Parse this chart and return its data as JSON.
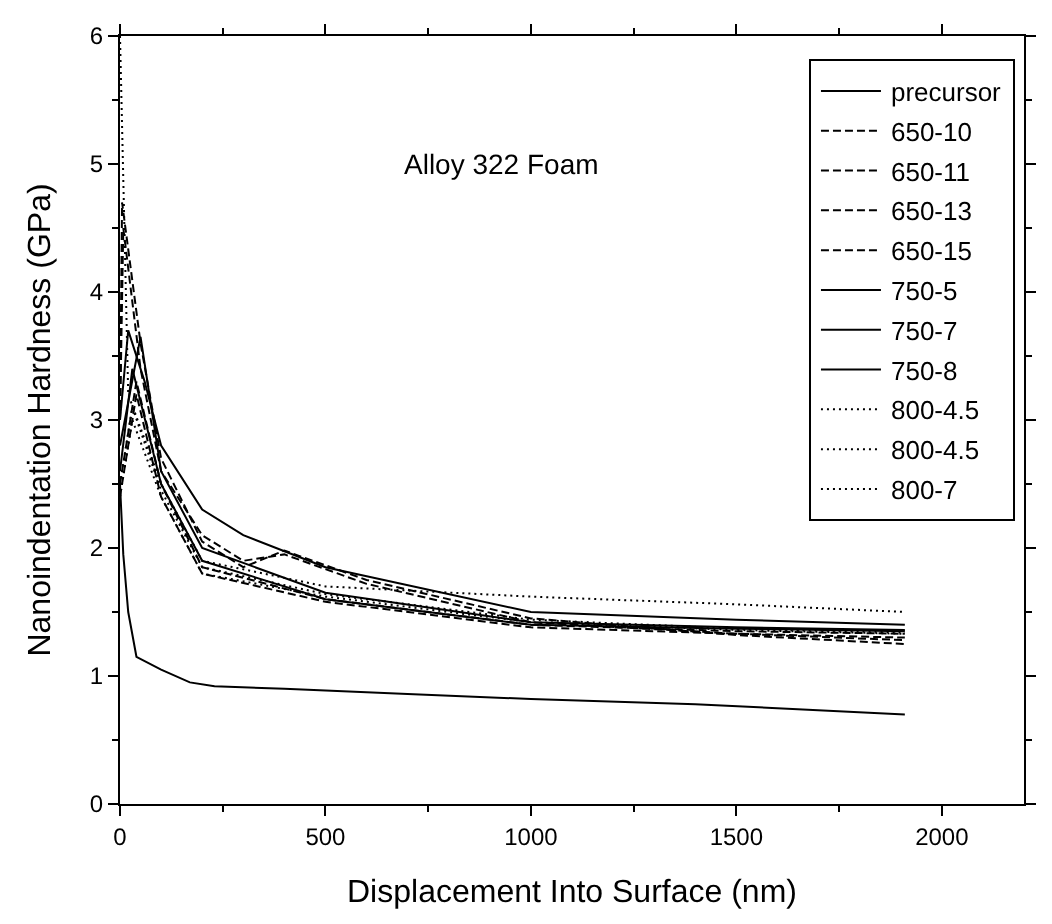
{
  "chart_data": {
    "type": "line",
    "xlabel": "Displacement Into Surface (nm)",
    "ylabel": "Nanoindentation Hardness (GPa)",
    "annotations": [
      "Alloy 322 Foam"
    ],
    "xlim": [
      0,
      2200
    ],
    "xticks": [
      0,
      500,
      1000,
      1500,
      2000
    ],
    "ylim": [
      0,
      6
    ],
    "yticks": [
      0,
      1,
      2,
      3,
      4,
      5,
      6
    ],
    "legend": "top right",
    "marker": "none",
    "series": [
      {
        "name": "precursor",
        "color": "#000000",
        "line_style": "solid",
        "x": [
          0,
          8,
          20,
          40,
          100,
          170,
          230,
          400,
          700,
          1000,
          1400,
          1910
        ],
        "values": [
          2.5,
          1.95,
          1.5,
          1.15,
          1.05,
          0.95,
          0.92,
          0.9,
          0.86,
          0.82,
          0.78,
          0.7
        ]
      },
      {
        "name": "650-10",
        "color": "#000000",
        "line_style": "dashed",
        "x": [
          0,
          5,
          50,
          100,
          200,
          300,
          400,
          600,
          1000,
          1500,
          1910
        ],
        "values": [
          3.0,
          4.7,
          3.6,
          2.7,
          2.05,
          1.85,
          1.98,
          1.75,
          1.45,
          1.32,
          1.25
        ]
      },
      {
        "name": "650-11",
        "color": "#000000",
        "line_style": "dashed",
        "x": [
          0,
          8,
          50,
          100,
          200,
          300,
          400,
          600,
          1000,
          1500,
          1910
        ],
        "values": [
          3.0,
          4.5,
          3.4,
          2.6,
          2.1,
          1.9,
          1.95,
          1.72,
          1.42,
          1.33,
          1.28
        ]
      },
      {
        "name": "650-13",
        "color": "#000000",
        "line_style": "dashed",
        "x": [
          0,
          40,
          100,
          200,
          500,
          1000,
          1500,
          1910
        ],
        "values": [
          2.5,
          3.3,
          2.5,
          1.85,
          1.6,
          1.4,
          1.35,
          1.33
        ]
      },
      {
        "name": "650-15",
        "color": "#000000",
        "line_style": "dashed",
        "x": [
          0,
          40,
          100,
          200,
          500,
          1000,
          1500,
          1910
        ],
        "values": [
          2.4,
          3.2,
          2.4,
          1.8,
          1.58,
          1.38,
          1.33,
          1.3
        ]
      },
      {
        "name": "750-5",
        "color": "#000000",
        "line_style": "solid",
        "x": [
          0,
          20,
          60,
          100,
          200,
          300,
          500,
          1000,
          1500,
          1910
        ],
        "values": [
          3.0,
          3.7,
          3.3,
          2.8,
          2.3,
          2.1,
          1.85,
          1.5,
          1.44,
          1.4
        ]
      },
      {
        "name": "750-7",
        "color": "#000000",
        "line_style": "solid",
        "x": [
          0,
          50,
          100,
          200,
          500,
          1000,
          1500,
          1910
        ],
        "values": [
          2.8,
          3.65,
          2.6,
          2.0,
          1.65,
          1.42,
          1.38,
          1.36
        ]
      },
      {
        "name": "750-8",
        "color": "#000000",
        "line_style": "solid",
        "x": [
          0,
          30,
          100,
          200,
          500,
          1000,
          1500,
          1910
        ],
        "values": [
          2.6,
          3.4,
          2.5,
          1.9,
          1.6,
          1.4,
          1.37,
          1.35
        ]
      },
      {
        "name": "800-4.5",
        "color": "#000000",
        "line_style": "dotted",
        "x": [
          0,
          30,
          100,
          200,
          500,
          1000,
          1500,
          1910
        ],
        "values": [
          2.4,
          3.0,
          2.4,
          1.8,
          1.62,
          1.42,
          1.36,
          1.33
        ]
      },
      {
        "name": "800-4.5",
        "color": "#000000",
        "line_style": "dotted",
        "x": [
          0,
          30,
          100,
          200,
          500,
          1000,
          1500,
          1910
        ],
        "values": [
          2.5,
          3.1,
          2.45,
          1.85,
          1.64,
          1.44,
          1.37,
          1.34
        ]
      },
      {
        "name": "800-7",
        "color": "#000000",
        "line_style": "dotted",
        "x": [
          0,
          20,
          100,
          200,
          500,
          1000,
          1500,
          1910
        ],
        "values": [
          6.0,
          3.2,
          2.5,
          1.9,
          1.7,
          1.62,
          1.56,
          1.5
        ]
      }
    ]
  }
}
